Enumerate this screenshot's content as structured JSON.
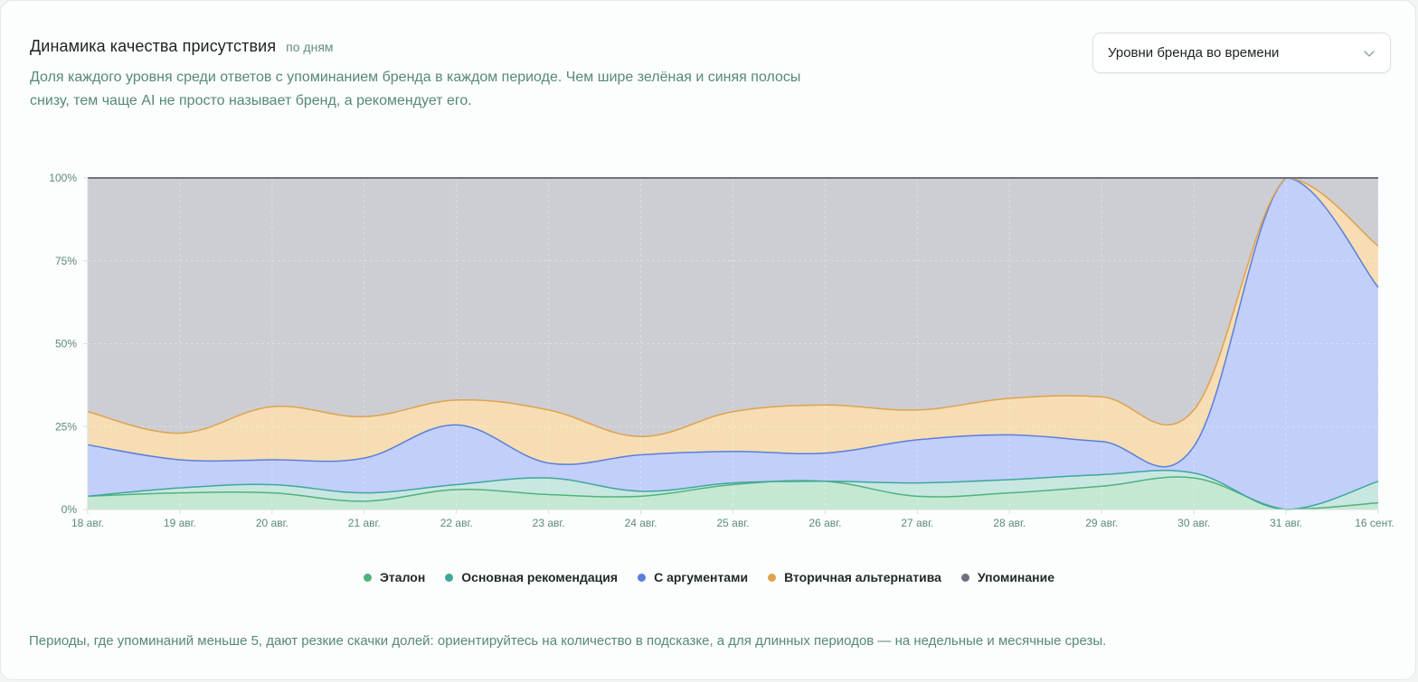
{
  "header": {
    "title": "Динамика качества присутствия",
    "period_tag": "по дням",
    "description": "Доля каждого уровня среди ответов с упоминанием бренда в каждом периоде. Чем шире зелёная и синяя полосы снизу, тем чаще AI не просто называет бренд, а рекомендует его."
  },
  "view_select": {
    "selected": "Уровни бренда во времени",
    "icon": "chevron-down-icon"
  },
  "footnote": "Периоды, где упоминаний меньше 5, дают резкие скачки долей: ориентируйтесь на количество в подсказке, а для длинных периодов — на недельные и месячные срезы.",
  "chart_data": {
    "type": "area",
    "stacked": true,
    "normalized_percent": true,
    "x": [
      "18 авг.",
      "19 авг.",
      "20 авг.",
      "21 авг.",
      "22 авг.",
      "23 авг.",
      "24 авг.",
      "25 авг.",
      "26 авг.",
      "27 авг.",
      "28 авг.",
      "29 авг.",
      "30 авг.",
      "31 авг.",
      "16 сент."
    ],
    "y_ticks": [
      "0%",
      "25%",
      "50%",
      "75%",
      "100%"
    ],
    "ylim": [
      0,
      100
    ],
    "grid": true,
    "legend_position": "bottom",
    "series": [
      {
        "name": "Эталон",
        "color": "#4fb27e",
        "fill": "#c5e8d2",
        "values": [
          4,
          5,
          5,
          2.5,
          6,
          4.5,
          4,
          7.5,
          8.5,
          4,
          5,
          7,
          9.5,
          0,
          2
        ]
      },
      {
        "name": "Основная рекомендация",
        "color": "#3fa79b",
        "fill": "#c8e7e0",
        "values": [
          0,
          1.5,
          2.5,
          2.5,
          1.5,
          5,
          1.5,
          0.5,
          0,
          4,
          4,
          3.5,
          1.5,
          0,
          6.5
        ]
      },
      {
        "name": "С аргументами",
        "color": "#5b7fdb",
        "fill": "#c1cffa",
        "values": [
          15.5,
          8.5,
          7.5,
          10.5,
          18,
          4.5,
          11,
          9.5,
          8.5,
          13,
          13.5,
          10,
          8,
          100,
          58.5
        ]
      },
      {
        "name": "Вторичная альтернатива",
        "color": "#e0a24d",
        "fill": "#f6ddb4",
        "values": [
          10,
          8,
          16,
          12.5,
          7.5,
          16,
          5.5,
          12,
          14.5,
          9,
          11,
          13.5,
          11,
          0,
          12.5
        ]
      },
      {
        "name": "Упоминание",
        "color": "#6e7180",
        "fill": "#ccced3",
        "values": [
          70.5,
          77,
          69,
          72,
          67,
          70,
          78,
          70.5,
          68.5,
          70,
          66.5,
          66,
          70,
          0,
          20.5
        ]
      }
    ]
  }
}
